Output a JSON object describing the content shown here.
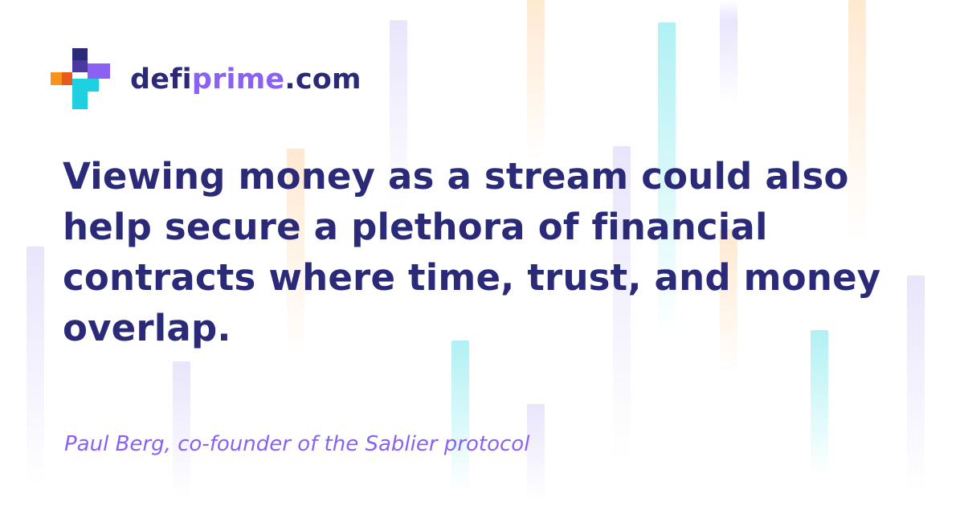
{
  "brand": {
    "name_dark": "defi",
    "name_accent": "prime",
    "name_tld": ".com",
    "colors": {
      "navy": "#2b2a78",
      "purple": "#8b61f4",
      "orange": "#f7931a",
      "cyan": "#1fd1e0"
    }
  },
  "quote": {
    "text": "Viewing money as a stream could also help secure a plethora of financial contracts where time, trust, and money overlap."
  },
  "attribution": {
    "text": "Paul Berg, co-founder of the Sablier protocol"
  },
  "icons": {
    "logo": "defiprime-cross-logo-icon"
  }
}
